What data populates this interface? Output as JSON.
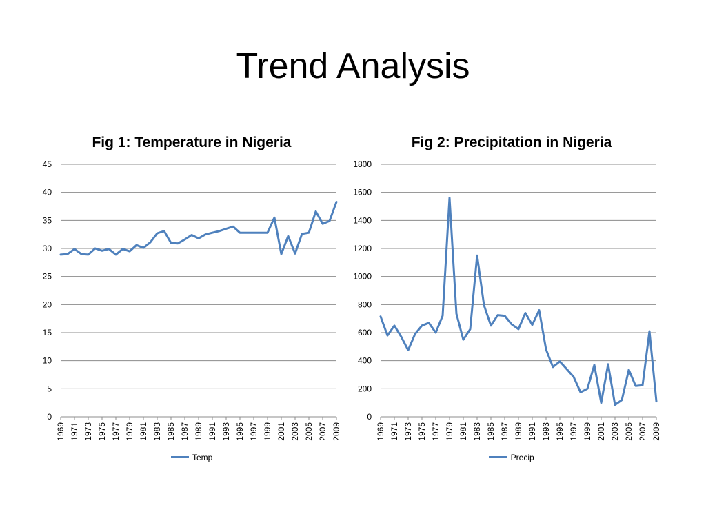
{
  "slide": {
    "title": "Trend Analysis"
  },
  "colors": {
    "series": "#4f81bd",
    "grid": "#8c8c8c"
  },
  "chart_data": [
    {
      "type": "line",
      "title": "Fig 1: Temperature in Nigeria",
      "xlabel": "",
      "ylabel": "",
      "ylim": [
        0,
        45
      ],
      "yticks": [
        0,
        5,
        10,
        15,
        20,
        25,
        30,
        35,
        40,
        45
      ],
      "x": [
        1969,
        1970,
        1971,
        1972,
        1973,
        1974,
        1975,
        1976,
        1977,
        1978,
        1979,
        1980,
        1981,
        1982,
        1983,
        1984,
        1985,
        1986,
        1987,
        1988,
        1989,
        1990,
        1991,
        1992,
        1993,
        1994,
        1995,
        1996,
        1997,
        1998,
        1999,
        2000,
        2001,
        2002,
        2003,
        2004,
        2005,
        2006,
        2007,
        2008,
        2009
      ],
      "xtick_labels": [
        "1969",
        "1971",
        "1973",
        "1975",
        "1977",
        "1979",
        "1981",
        "1983",
        "1985",
        "1987",
        "1989",
        "1991",
        "1993",
        "1995",
        "1997",
        "1999",
        "2001",
        "2003",
        "2005",
        "2007",
        "2009"
      ],
      "grid": true,
      "legend_position": "bottom",
      "series": [
        {
          "name": "Temp",
          "values": [
            28.9,
            29.0,
            29.9,
            29.0,
            28.9,
            30.0,
            29.6,
            29.9,
            28.9,
            29.9,
            29.5,
            30.6,
            30.1,
            31.1,
            32.7,
            33.1,
            31.0,
            30.9,
            31.6,
            32.4,
            31.8,
            32.5,
            32.8,
            33.1,
            33.5,
            33.9,
            32.8,
            32.8,
            32.8,
            32.8,
            32.8,
            35.5,
            29.0,
            32.2,
            29.1,
            32.6,
            32.8,
            36.6,
            34.4,
            34.9,
            38.3
          ]
        }
      ]
    },
    {
      "type": "line",
      "title": "Fig 2: Precipitation in Nigeria",
      "xlabel": "",
      "ylabel": "",
      "ylim": [
        0,
        1800
      ],
      "yticks": [
        0,
        200,
        400,
        600,
        800,
        1000,
        1200,
        1400,
        1600,
        1800
      ],
      "x": [
        1969,
        1970,
        1971,
        1972,
        1973,
        1974,
        1975,
        1976,
        1977,
        1978,
        1979,
        1980,
        1981,
        1982,
        1983,
        1984,
        1985,
        1986,
        1987,
        1988,
        1989,
        1990,
        1991,
        1992,
        1993,
        1994,
        1995,
        1996,
        1997,
        1998,
        1999,
        2000,
        2001,
        2002,
        2003,
        2004,
        2005,
        2006,
        2007,
        2008,
        2009
      ],
      "xtick_labels": [
        "1969",
        "1971",
        "1973",
        "1975",
        "1977",
        "1979",
        "1981",
        "1983",
        "1985",
        "1987",
        "1989",
        "1991",
        "1993",
        "1995",
        "1997",
        "1999",
        "2001",
        "2003",
        "2005",
        "2007",
        "2009"
      ],
      "grid": true,
      "legend_position": "bottom",
      "series": [
        {
          "name": "Precip",
          "values": [
            715,
            580,
            650,
            570,
            475,
            590,
            650,
            670,
            600,
            720,
            1560,
            735,
            550,
            625,
            1150,
            795,
            650,
            725,
            720,
            660,
            625,
            740,
            655,
            760,
            480,
            355,
            395,
            340,
            285,
            175,
            200,
            370,
            100,
            375,
            85,
            120,
            335,
            220,
            225,
            610,
            110
          ]
        }
      ]
    }
  ]
}
